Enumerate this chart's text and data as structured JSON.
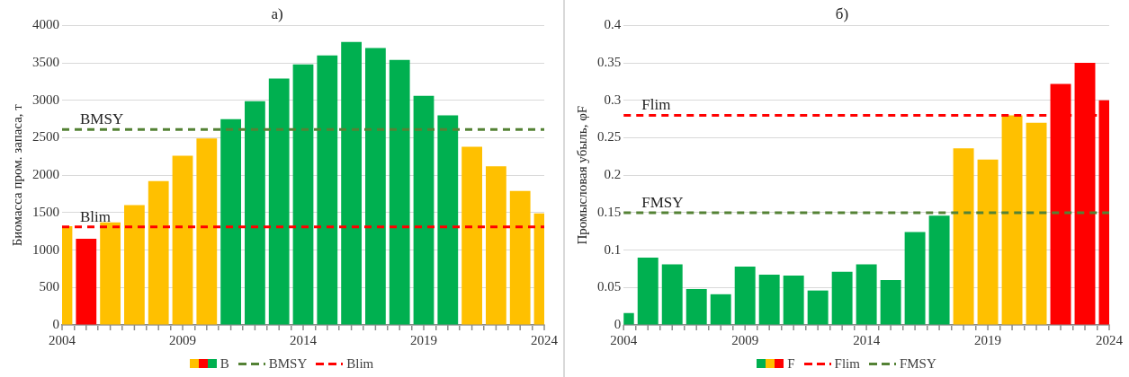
{
  "chart_data": [
    {
      "type": "bar",
      "title": "а)",
      "ylabel": "Биомасса пром. запаса, т",
      "x": [
        2004,
        2005,
        2006,
        2007,
        2008,
        2009,
        2010,
        2011,
        2012,
        2013,
        2014,
        2015,
        2016,
        2017,
        2018,
        2019,
        2020,
        2021,
        2022,
        2023,
        2024
      ],
      "xlim": [
        2004,
        2024
      ],
      "xticks": [
        2004,
        {
          "value": 2005,
          "label": null
        },
        {
          "value": 2006,
          "label": null
        },
        {
          "value": 2007,
          "label": null
        },
        {
          "value": 2008,
          "label": null
        },
        2009,
        {
          "value": 2010,
          "label": null
        },
        {
          "value": 2011,
          "label": null
        },
        {
          "value": 2012,
          "label": null
        },
        {
          "value": 2013,
          "label": null
        },
        2014,
        {
          "value": 2015,
          "label": null
        },
        {
          "value": 2016,
          "label": null
        },
        {
          "value": 2017,
          "label": null
        },
        {
          "value": 2018,
          "label": null
        },
        2019,
        {
          "value": 2020,
          "label": null
        },
        {
          "value": 2021,
          "label": null
        },
        {
          "value": 2022,
          "label": null
        },
        {
          "value": 2023,
          "label": null
        },
        2024
      ],
      "ylim": [
        0,
        4000
      ],
      "yticks": [
        0,
        500,
        1000,
        1500,
        2000,
        2500,
        3000,
        3500,
        4000
      ],
      "series": [
        {
          "name": "B",
          "values": [
            1320,
            1150,
            1370,
            1600,
            1920,
            2260,
            2490,
            2750,
            2990,
            3290,
            3480,
            3600,
            3780,
            3700,
            3540,
            3060,
            2800,
            2380,
            2120,
            1790,
            1490
          ],
          "colors": [
            "#ffc000",
            "#ff0000",
            "#ffc000",
            "#ffc000",
            "#ffc000",
            "#ffc000",
            "#ffc000",
            "#00b050",
            "#00b050",
            "#00b050",
            "#00b050",
            "#00b050",
            "#00b050",
            "#00b050",
            "#00b050",
            "#00b050",
            "#00b050",
            "#ffc000",
            "#ffc000",
            "#ffc000",
            "#ffc000"
          ]
        }
      ],
      "ref_lines": [
        {
          "axis": "y",
          "value": 2610,
          "label": "BMSY",
          "color": "#548235",
          "line_style": "dashed"
        },
        {
          "axis": "y",
          "value": 1310,
          "label": "Blim",
          "color": "#ff0000",
          "line_style": "dashed"
        }
      ],
      "grid": "y",
      "legend": "bottom"
    },
    {
      "type": "bar",
      "title": "б)",
      "ylabel": "Промысловая убыль, φF",
      "x": [
        2004,
        2005,
        2006,
        2007,
        2008,
        2009,
        2010,
        2011,
        2012,
        2013,
        2014,
        2015,
        2016,
        2017,
        2018,
        2019,
        2020,
        2021,
        2022,
        2023,
        2024
      ],
      "xlim": [
        2004,
        2024
      ],
      "xticks": [
        2004,
        {
          "value": 2005,
          "label": null
        },
        {
          "value": 2006,
          "label": null
        },
        {
          "value": 2007,
          "label": null
        },
        {
          "value": 2008,
          "label": null
        },
        2009,
        {
          "value": 2010,
          "label": null
        },
        {
          "value": 2011,
          "label": null
        },
        {
          "value": 2012,
          "label": null
        },
        {
          "value": 2013,
          "label": null
        },
        2014,
        {
          "value": 2015,
          "label": null
        },
        {
          "value": 2016,
          "label": null
        },
        {
          "value": 2017,
          "label": null
        },
        {
          "value": 2018,
          "label": null
        },
        2019,
        {
          "value": 2020,
          "label": null
        },
        {
          "value": 2021,
          "label": null
        },
        {
          "value": 2022,
          "label": null
        },
        {
          "value": 2023,
          "label": null
        },
        2024
      ],
      "ylim": [
        0,
        0.4
      ],
      "yticks": [
        0,
        0.05,
        0.1,
        0.15,
        0.2,
        0.25,
        0.3,
        0.35,
        0.4
      ],
      "series": [
        {
          "name": "F",
          "values": [
            0.016,
            0.09,
            0.081,
            0.048,
            0.041,
            0.078,
            0.067,
            0.066,
            0.046,
            0.071,
            0.081,
            0.06,
            0.124,
            0.146,
            0.236,
            0.221,
            0.28,
            0.27,
            0.322,
            0.35,
            0.3
          ],
          "colors": [
            "#00b050",
            "#00b050",
            "#00b050",
            "#00b050",
            "#00b050",
            "#00b050",
            "#00b050",
            "#00b050",
            "#00b050",
            "#00b050",
            "#00b050",
            "#00b050",
            "#00b050",
            "#00b050",
            "#ffc000",
            "#ffc000",
            "#ffc000",
            "#ffc000",
            "#ff0000",
            "#ff0000",
            "#ff0000"
          ]
        }
      ],
      "ref_lines": [
        {
          "axis": "y",
          "value": 0.28,
          "label": "Flim",
          "color": "#ff0000",
          "line_style": "dashed"
        },
        {
          "axis": "y",
          "value": 0.15,
          "label": "FMSY",
          "color": "#548235",
          "line_style": "dashed"
        }
      ],
      "grid": "y",
      "legend": "bottom"
    }
  ]
}
